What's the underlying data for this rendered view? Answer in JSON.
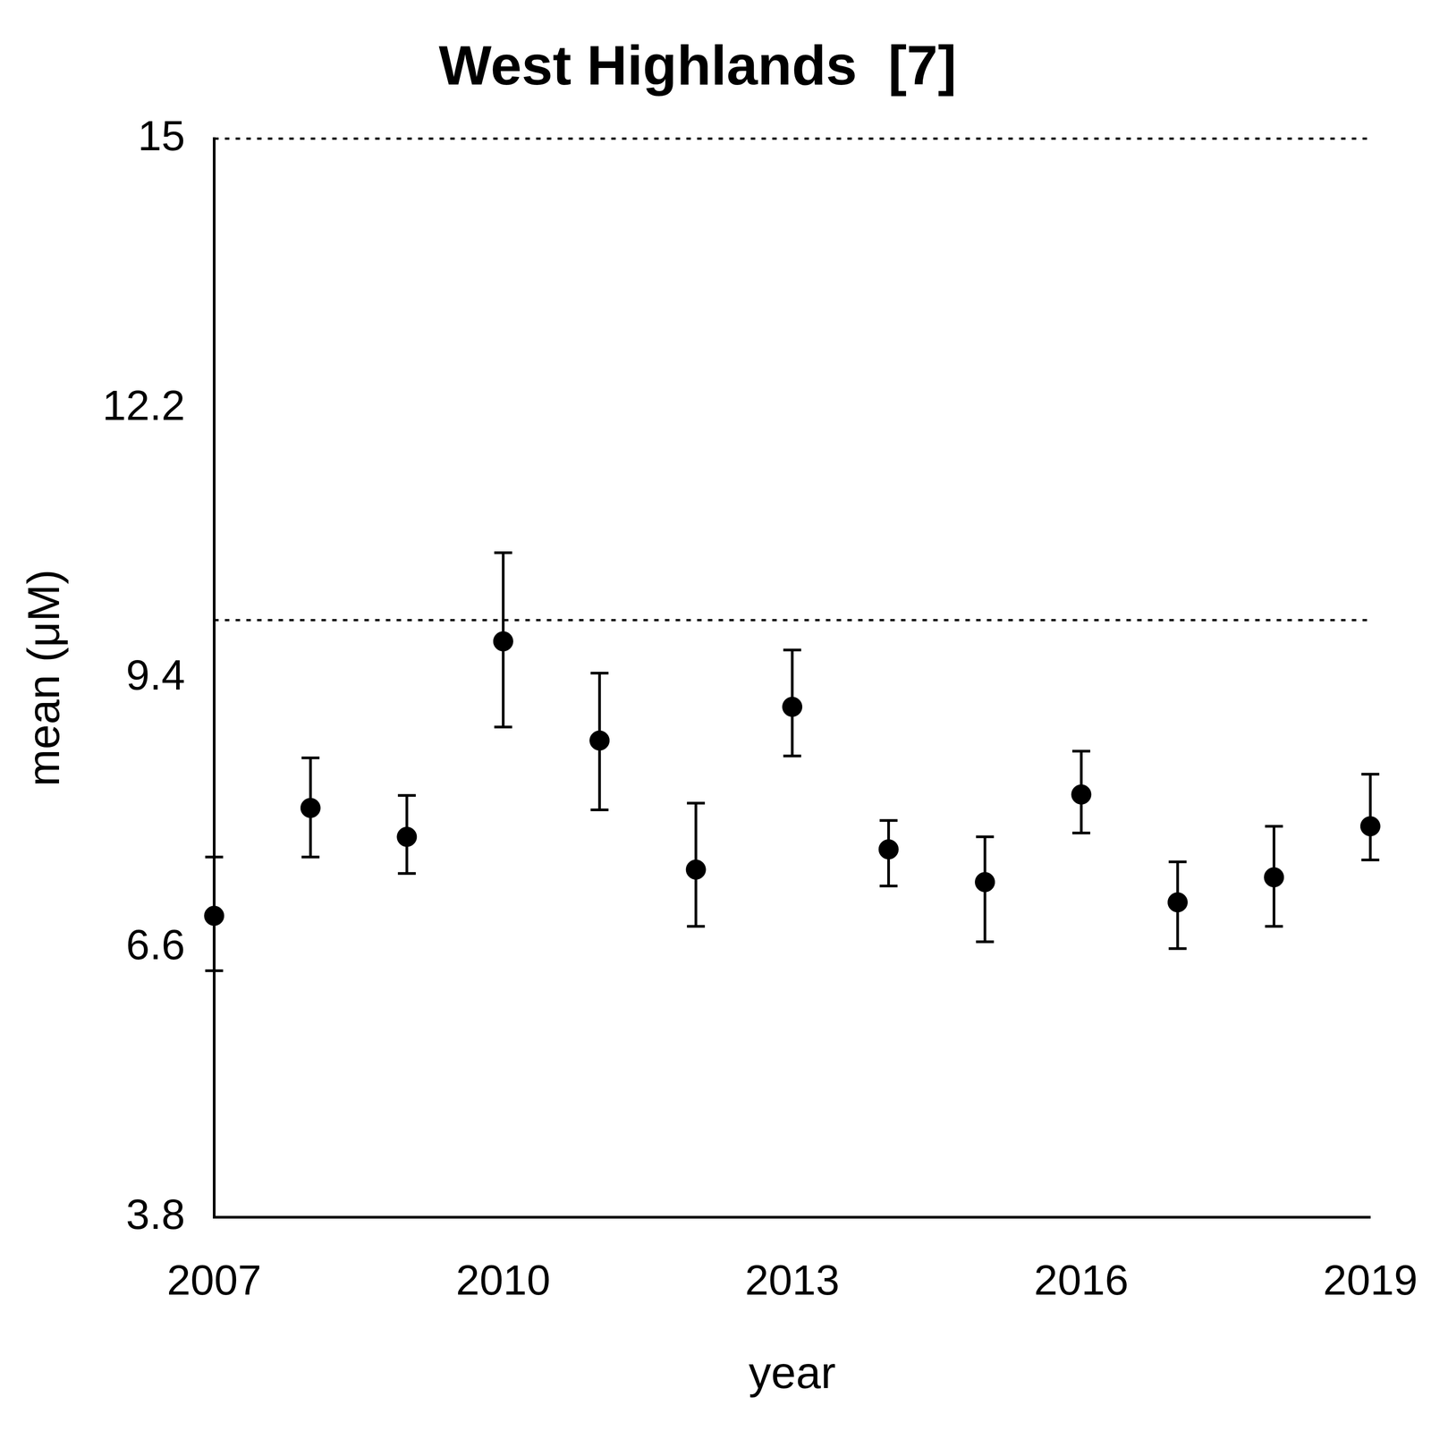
{
  "chart_data": {
    "type": "scatter",
    "title": "West Highlands  [7]",
    "x_label": "year",
    "y_label": "mean (μM)",
    "x": [
      2007,
      2008,
      2009,
      2010,
      2011,
      2012,
      2013,
      2014,
      2015,
      2016,
      2017,
      2018,
      2019
    ],
    "values": [
      6.93,
      8.05,
      7.75,
      9.78,
      8.75,
      7.41,
      9.1,
      7.62,
      7.28,
      8.19,
      7.07,
      7.33,
      7.86
    ],
    "error_low": [
      6.36,
      7.54,
      7.37,
      8.89,
      8.03,
      6.82,
      8.59,
      7.24,
      6.66,
      7.79,
      6.59,
      6.82,
      7.51
    ],
    "error_high": [
      7.54,
      8.57,
      8.18,
      10.7,
      9.45,
      8.1,
      9.69,
      7.92,
      7.75,
      8.64,
      7.49,
      7.86,
      8.4
    ],
    "reference_lines": [
      10,
      15
    ],
    "color": "#000000",
    "marker": "circle",
    "xlim": [
      2007,
      2019
    ],
    "xticks": [
      2007,
      2010,
      2013,
      2016,
      2019
    ],
    "ylim": [
      3.8,
      15
    ],
    "yticks": [
      3.8,
      6.6,
      9.4,
      12.2,
      15
    ],
    "grid": false
  }
}
